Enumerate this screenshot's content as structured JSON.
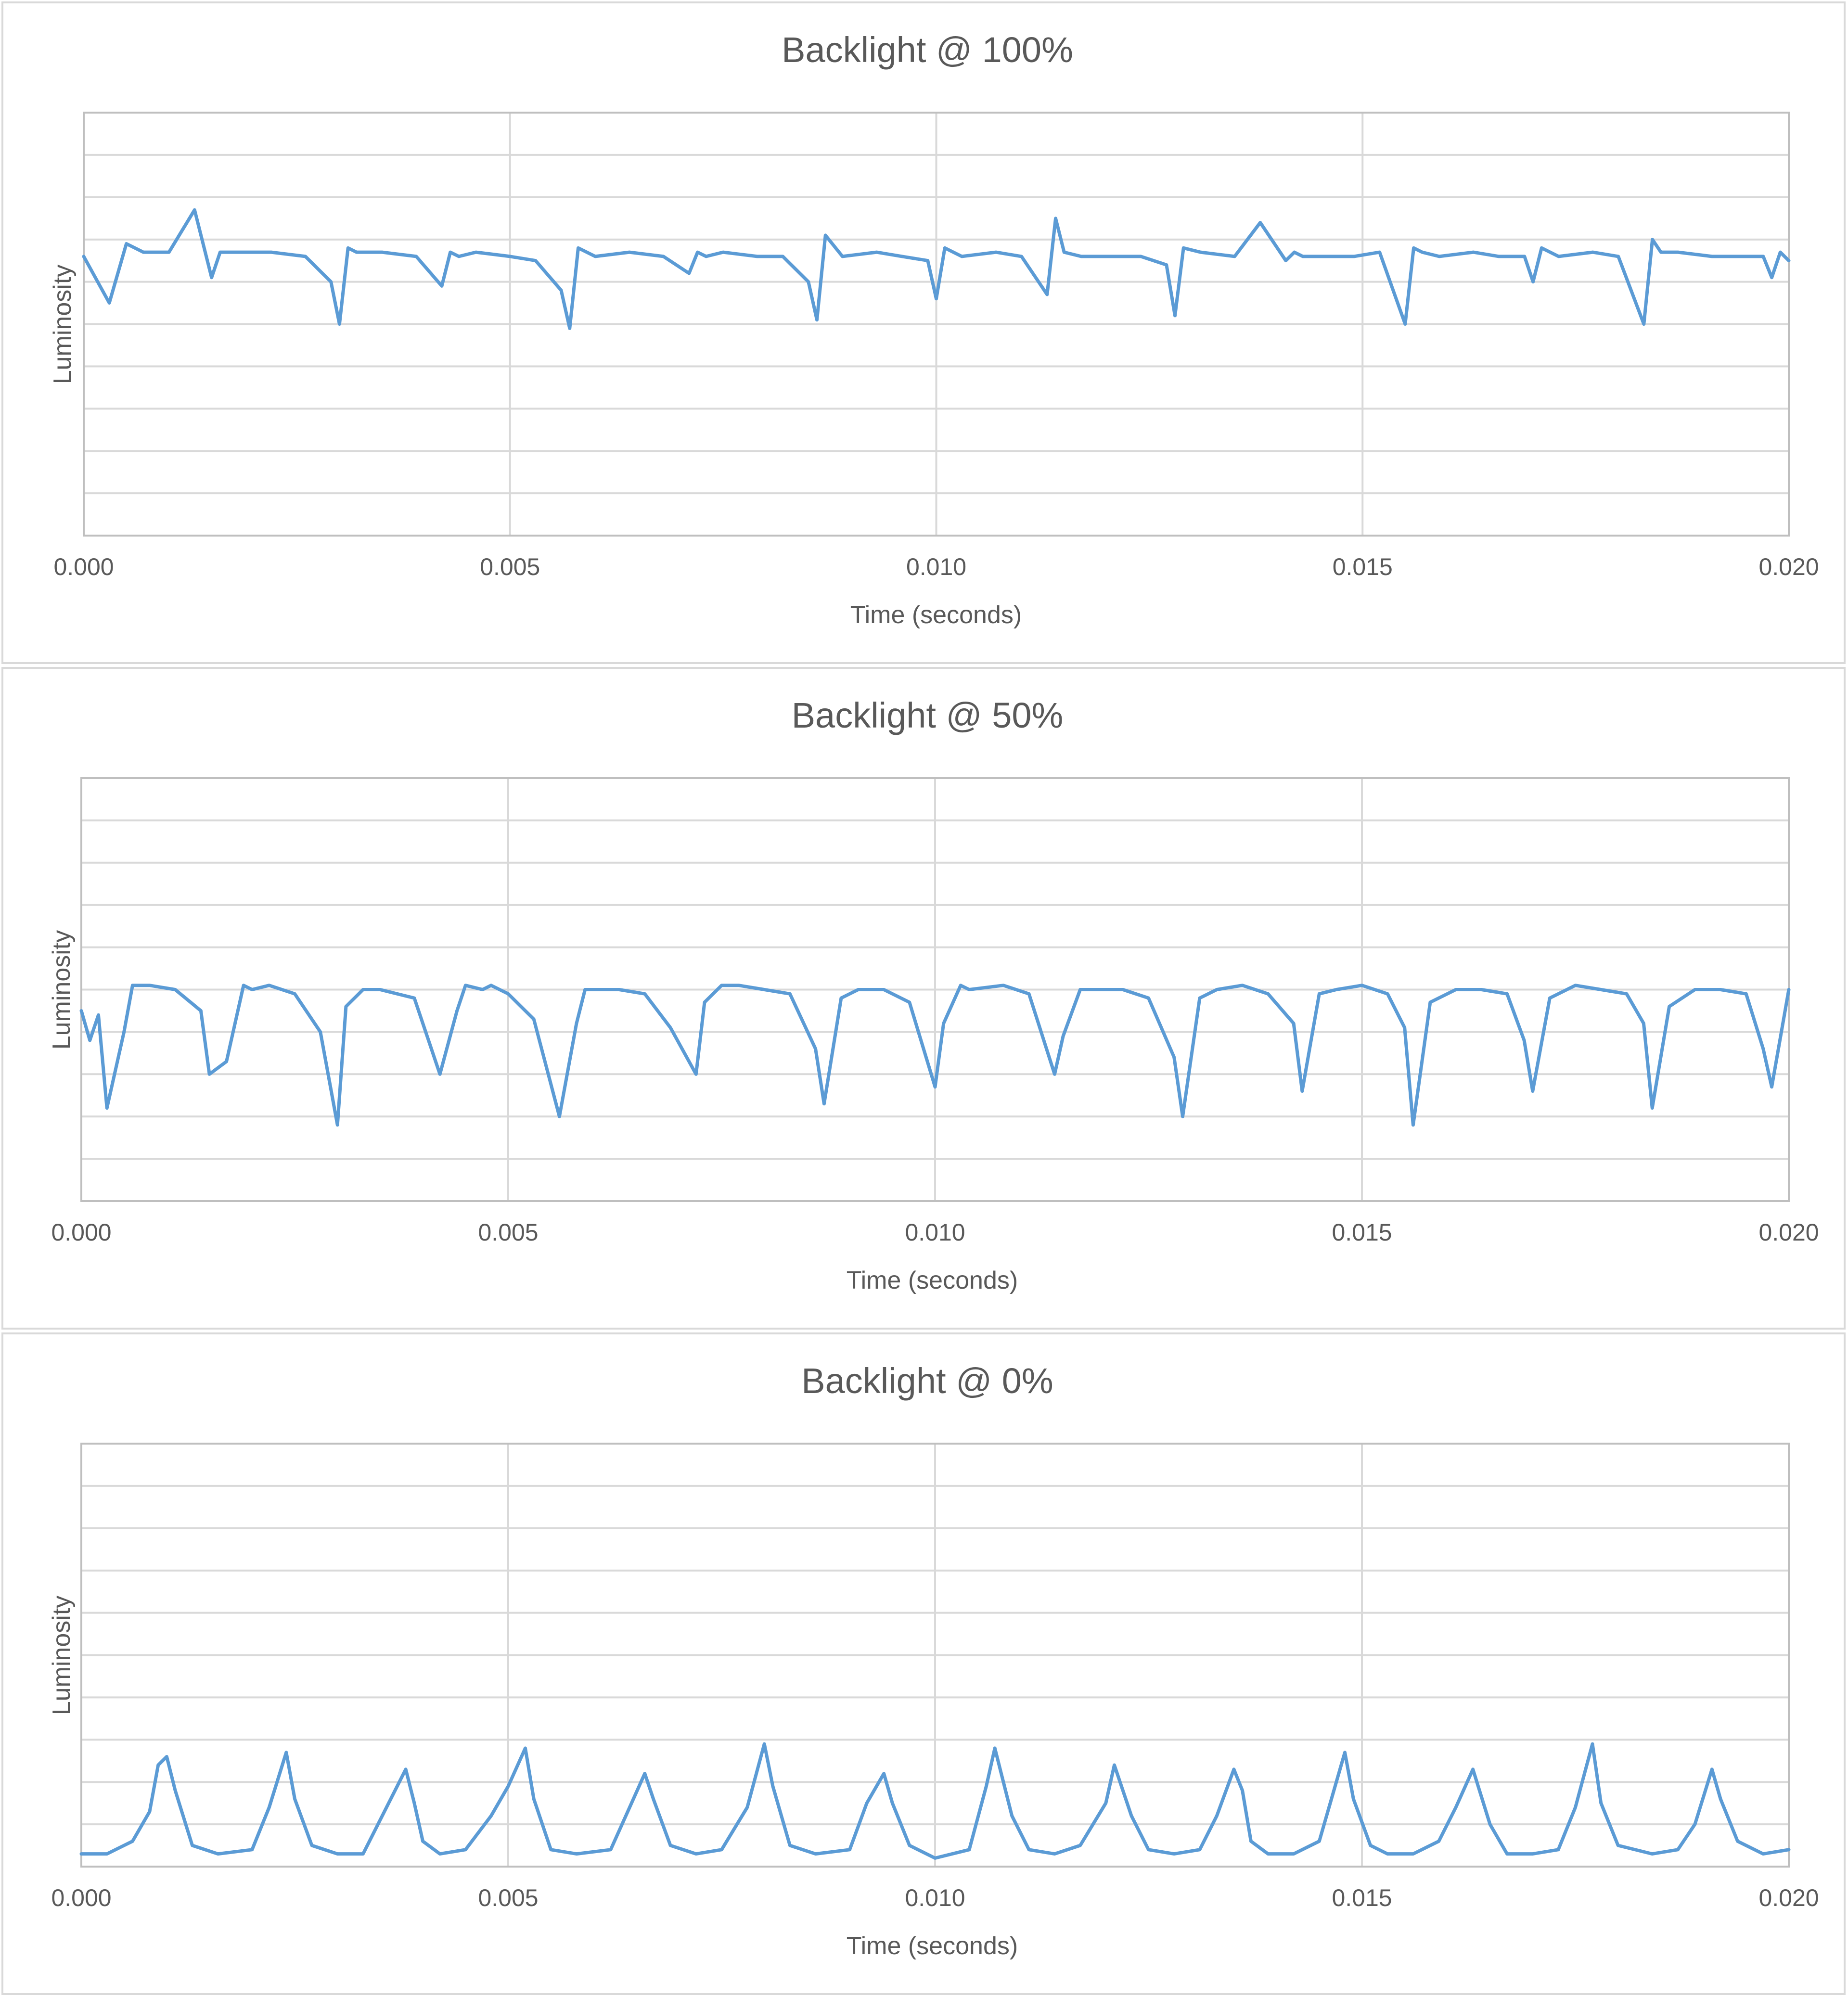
{
  "chart_data": [
    {
      "type": "line",
      "title": "Backlight @ 100%",
      "xlabel": "Time (seconds)",
      "ylabel": "Luminosity",
      "xlim": [
        0,
        0.02
      ],
      "ylim": [
        0,
        10
      ],
      "x_ticks": [
        "0.000",
        "0.005",
        "0.010",
        "0.015",
        "0.020"
      ],
      "y_gridlines": 10,
      "grid": true,
      "legend": "none",
      "color": "#5b9bd5",
      "series": [
        {
          "x": [
            0.0,
            0.0003,
            0.0005,
            0.0007,
            0.001,
            0.0013,
            0.0015,
            0.0016,
            0.0017,
            0.0019,
            0.0022,
            0.0026,
            0.0029,
            0.003,
            0.0031,
            0.0032,
            0.0035,
            0.0039,
            0.0042,
            0.0043,
            0.0044,
            0.0046,
            0.005,
            0.0053,
            0.0056,
            0.0057,
            0.0058,
            0.006,
            0.0064,
            0.0068,
            0.0071,
            0.0072,
            0.0073,
            0.0075,
            0.0079,
            0.0082,
            0.0085,
            0.0086,
            0.0087,
            0.0089,
            0.0093,
            0.0096,
            0.0099,
            0.01,
            0.0101,
            0.0103,
            0.0107,
            0.011,
            0.0113,
            0.0114,
            0.0115,
            0.0117,
            0.0121,
            0.0124,
            0.0127,
            0.0128,
            0.0129,
            0.0131,
            0.0135,
            0.0138,
            0.0141,
            0.0142,
            0.0143,
            0.0145,
            0.0149,
            0.0152,
            0.0155,
            0.0156,
            0.0157,
            0.0159,
            0.0163,
            0.0166,
            0.0169,
            0.017,
            0.0171,
            0.0173,
            0.0177,
            0.018,
            0.0183,
            0.0184,
            0.0185,
            0.0187,
            0.0191,
            0.0194,
            0.0197,
            0.0198,
            0.0199,
            0.02
          ],
          "y": [
            6.6,
            5.5,
            6.9,
            6.7,
            6.7,
            7.7,
            6.1,
            6.7,
            6.7,
            6.7,
            6.7,
            6.6,
            6.0,
            5.0,
            6.8,
            6.7,
            6.7,
            6.6,
            5.9,
            6.7,
            6.6,
            6.7,
            6.6,
            6.5,
            5.8,
            4.9,
            6.8,
            6.6,
            6.7,
            6.6,
            6.2,
            6.7,
            6.6,
            6.7,
            6.6,
            6.6,
            6.0,
            5.1,
            7.1,
            6.6,
            6.7,
            6.6,
            6.5,
            5.6,
            6.8,
            6.6,
            6.7,
            6.6,
            5.7,
            7.5,
            6.7,
            6.6,
            6.6,
            6.6,
            6.4,
            5.2,
            6.8,
            6.7,
            6.6,
            7.4,
            6.5,
            6.7,
            6.6,
            6.6,
            6.6,
            6.7,
            5.0,
            6.8,
            6.7,
            6.6,
            6.7,
            6.6,
            6.6,
            6.0,
            6.8,
            6.6,
            6.7,
            6.6,
            5.0,
            7.0,
            6.7,
            6.7,
            6.6,
            6.6,
            6.6,
            6.1,
            6.7,
            6.5
          ]
        }
      ]
    },
    {
      "type": "line",
      "title": "Backlight @ 50%",
      "xlabel": "Time (seconds)",
      "ylabel": "Luminosity",
      "xlim": [
        0,
        0.02
      ],
      "ylim": [
        0,
        10
      ],
      "x_ticks": [
        "0.000",
        "0.005",
        "0.010",
        "0.015",
        "0.020"
      ],
      "y_gridlines": 10,
      "grid": true,
      "legend": "none",
      "color": "#5b9bd5",
      "series": [
        {
          "x": [
            0.0,
            0.0001,
            0.0002,
            0.0003,
            0.0005,
            0.0006,
            0.0008,
            0.0011,
            0.0014,
            0.0015,
            0.0017,
            0.0019,
            0.002,
            0.0022,
            0.0025,
            0.0028,
            0.003,
            0.0031,
            0.0033,
            0.0035,
            0.0039,
            0.0042,
            0.0044,
            0.0045,
            0.0047,
            0.0048,
            0.005,
            0.0053,
            0.0056,
            0.0058,
            0.0059,
            0.0061,
            0.0063,
            0.0066,
            0.0069,
            0.0072,
            0.0073,
            0.0075,
            0.0077,
            0.008,
            0.0083,
            0.0086,
            0.0087,
            0.0089,
            0.0091,
            0.0094,
            0.0097,
            0.01,
            0.0101,
            0.0103,
            0.0104,
            0.0108,
            0.0111,
            0.0114,
            0.0115,
            0.0117,
            0.0118,
            0.0122,
            0.0125,
            0.0128,
            0.0129,
            0.0131,
            0.0133,
            0.0136,
            0.0139,
            0.0142,
            0.0143,
            0.0145,
            0.0147,
            0.015,
            0.0153,
            0.0155,
            0.0156,
            0.0158,
            0.0161,
            0.0164,
            0.0167,
            0.0169,
            0.017,
            0.0172,
            0.0175,
            0.0178,
            0.0181,
            0.0183,
            0.0184,
            0.0186,
            0.0189,
            0.0192,
            0.0195,
            0.0197,
            0.0198,
            0.02
          ],
          "y": [
            4.5,
            3.8,
            4.4,
            2.2,
            4.0,
            5.1,
            5.1,
            5.0,
            4.5,
            3.0,
            3.3,
            5.1,
            5.0,
            5.1,
            4.9,
            4.0,
            1.8,
            4.6,
            5.0,
            5.0,
            4.8,
            3.0,
            4.5,
            5.1,
            5.0,
            5.1,
            4.9,
            4.3,
            2.0,
            4.2,
            5.0,
            5.0,
            5.0,
            4.9,
            4.1,
            3.0,
            4.7,
            5.1,
            5.1,
            5.0,
            4.9,
            3.6,
            2.3,
            4.8,
            5.0,
            5.0,
            4.7,
            2.7,
            4.2,
            5.1,
            5.0,
            5.1,
            4.9,
            3.0,
            3.9,
            5.0,
            5.0,
            5.0,
            4.8,
            3.4,
            2.0,
            4.8,
            5.0,
            5.1,
            4.9,
            4.2,
            2.6,
            4.9,
            5.0,
            5.1,
            4.9,
            4.1,
            1.8,
            4.7,
            5.0,
            5.0,
            4.9,
            3.8,
            2.6,
            4.8,
            5.1,
            5.0,
            4.9,
            4.2,
            2.2,
            4.6,
            5.0,
            5.0,
            4.9,
            3.6,
            2.7,
            5.0
          ]
        }
      ]
    },
    {
      "type": "line",
      "title": "Backlight @ 0%",
      "xlabel": "Time (seconds)",
      "ylabel": "Luminosity",
      "xlim": [
        0,
        0.02
      ],
      "ylim": [
        0,
        10
      ],
      "x_ticks": [
        "0.000",
        "0.005",
        "0.010",
        "0.015",
        "0.020"
      ],
      "y_gridlines": 10,
      "grid": true,
      "legend": "none",
      "color": "#5b9bd5",
      "series": [
        {
          "x": [
            0.0,
            0.0003,
            0.0006,
            0.0008,
            0.0009,
            0.001,
            0.0011,
            0.0013,
            0.0016,
            0.002,
            0.0022,
            0.0024,
            0.0025,
            0.0027,
            0.003,
            0.0033,
            0.0036,
            0.0038,
            0.0039,
            0.004,
            0.0042,
            0.0045,
            0.0048,
            0.005,
            0.0052,
            0.0053,
            0.0055,
            0.0058,
            0.0062,
            0.0064,
            0.0066,
            0.0067,
            0.0069,
            0.0072,
            0.0075,
            0.0078,
            0.008,
            0.0081,
            0.0083,
            0.0086,
            0.009,
            0.0092,
            0.0094,
            0.0095,
            0.0097,
            0.01,
            0.0104,
            0.0106,
            0.0107,
            0.0109,
            0.0111,
            0.0114,
            0.0117,
            0.012,
            0.0121,
            0.0123,
            0.0125,
            0.0128,
            0.0131,
            0.0133,
            0.0135,
            0.0136,
            0.0137,
            0.0139,
            0.0142,
            0.0145,
            0.0148,
            0.0149,
            0.0151,
            0.0153,
            0.0156,
            0.0159,
            0.0161,
            0.0163,
            0.0165,
            0.0167,
            0.017,
            0.0173,
            0.0175,
            0.0177,
            0.0178,
            0.018,
            0.0184,
            0.0187,
            0.0189,
            0.0191,
            0.0192,
            0.0194,
            0.0197,
            0.02
          ],
          "y": [
            0.3,
            0.3,
            0.6,
            1.3,
            2.4,
            2.6,
            1.8,
            0.5,
            0.3,
            0.4,
            1.4,
            2.7,
            1.6,
            0.5,
            0.3,
            0.3,
            1.5,
            2.3,
            1.5,
            0.6,
            0.3,
            0.4,
            1.2,
            1.9,
            2.8,
            1.6,
            0.4,
            0.3,
            0.4,
            1.3,
            2.2,
            1.6,
            0.5,
            0.3,
            0.4,
            1.4,
            2.9,
            1.9,
            0.5,
            0.3,
            0.4,
            1.5,
            2.2,
            1.5,
            0.5,
            0.2,
            0.4,
            1.9,
            2.8,
            1.2,
            0.4,
            0.3,
            0.5,
            1.5,
            2.4,
            1.2,
            0.4,
            0.3,
            0.4,
            1.2,
            2.3,
            1.8,
            0.6,
            0.3,
            0.3,
            0.6,
            2.7,
            1.6,
            0.5,
            0.3,
            0.3,
            0.6,
            1.4,
            2.3,
            1.0,
            0.3,
            0.3,
            0.4,
            1.4,
            2.9,
            1.5,
            0.5,
            0.3,
            0.4,
            1.0,
            2.3,
            1.6,
            0.6,
            0.3,
            0.4
          ]
        }
      ]
    }
  ]
}
